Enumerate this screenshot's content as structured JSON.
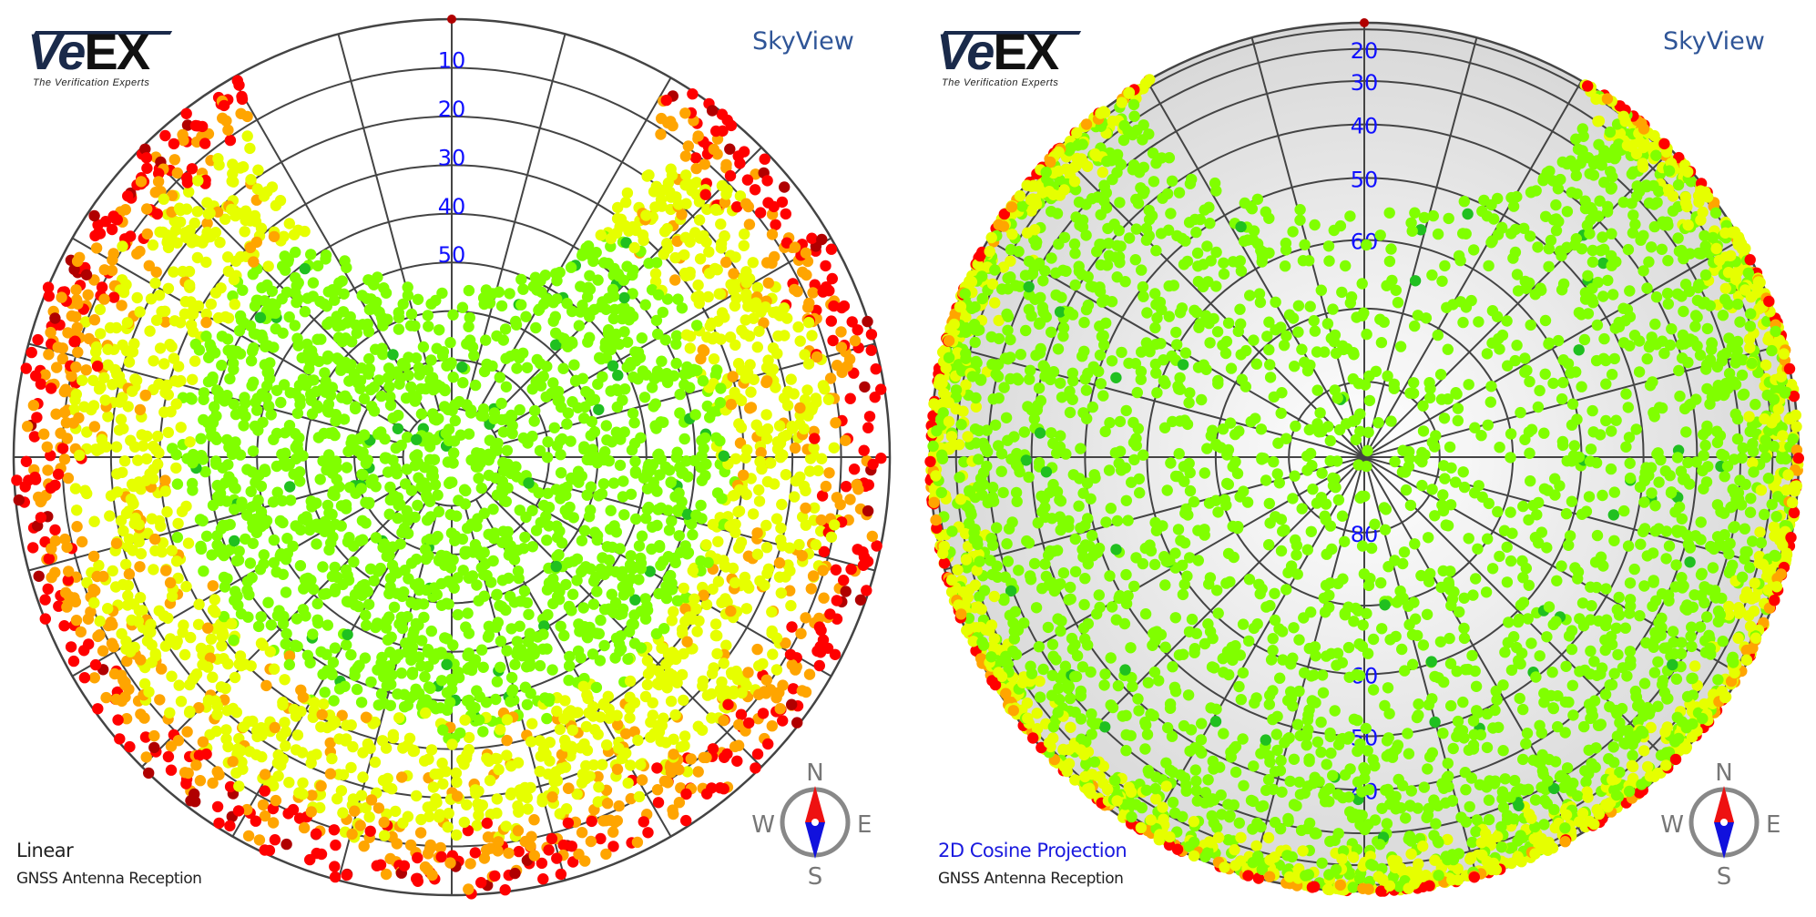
{
  "brand": {
    "logo_text": "VeEX",
    "tagline": "The Verification Experts"
  },
  "panels": [
    {
      "title": "SkyView",
      "mode": "Linear",
      "subtitle": "GNSS Antenna Reception"
    },
    {
      "title": "SkyView",
      "mode": "2D Cosine Projection",
      "subtitle": "GNSS Antenna Reception"
    }
  ],
  "compass": {
    "n": "N",
    "e": "E",
    "s": "S",
    "w": "W"
  },
  "chart_data": [
    {
      "type": "scatter",
      "coordinate_system": "polar sky plot (azimuth / elevation)",
      "projection": "linear",
      "elevation_rings": [
        0,
        10,
        20,
        30,
        40,
        50,
        60,
        70,
        80,
        90
      ],
      "ring_labels": [
        "10",
        "20",
        "30",
        "40",
        "50"
      ],
      "azimuth_grid_step_deg": 15,
      "grid": true,
      "north": "top",
      "signal_colors": {
        "very_weak": "#b00000",
        "weak": "#ff0000",
        "fair": "#ffa500",
        "good": "#e6ff00",
        "strong": "#80ff00",
        "best": "#20c020"
      },
      "background": "#ffffff"
    },
    {
      "type": "scatter",
      "coordinate_system": "polar sky plot (azimuth / elevation)",
      "projection": "cosine",
      "elevation_rings": [
        0,
        10,
        20,
        30,
        40,
        50,
        60,
        70,
        80,
        90
      ],
      "ring_labels": [
        "20",
        "30",
        "40",
        "50",
        "60"
      ],
      "ring_labels_south": [
        "80",
        "60",
        "50",
        "40"
      ],
      "azimuth_grid_step_deg": 15,
      "grid": true,
      "north": "top",
      "signal_colors": {
        "very_weak": "#b00000",
        "weak": "#ff0000",
        "fair": "#ffa500",
        "good": "#e6ff00",
        "strong": "#80ff00",
        "best": "#20c020"
      },
      "background": "#dcdcdc"
    }
  ]
}
